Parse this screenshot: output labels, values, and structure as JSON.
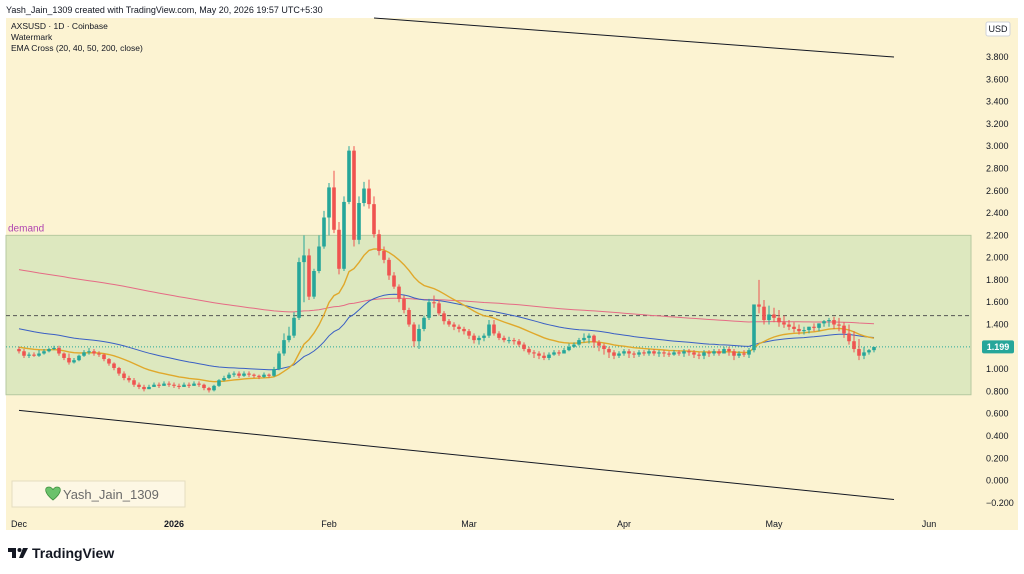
{
  "header": {
    "attribution": "Yash_Jain_1309 created with TradingView.com, May 20, 2026 19:57 UTC+5:30",
    "symbol_line": "AXSUSD · 1D · Coinbase",
    "watermark_line": "Watermark",
    "indicator_line": "EMA Cross (20, 40, 50, 200, close)"
  },
  "footer": {
    "logo_text": "TradingView"
  },
  "watermark_box": {
    "text": "Yash_Jain_1309"
  },
  "price_axis": {
    "currency": "USD",
    "last_price": "1.199"
  },
  "colors": {
    "plot_bg": "#fcf3d2",
    "demand_zone": "#d9e7bc",
    "up_candle": "#26a69a",
    "down_candle": "#ef5350",
    "ema_fast": "#e0a82b",
    "ema_slow": "#3a5fc4",
    "ema_200": "#e56b85",
    "last_price": "#26a69a",
    "demand_label": "#b044b0"
  },
  "chart_data": {
    "type": "candlestick",
    "title": "AXSUSD · 1D · Coinbase",
    "x_labels": [
      "Dec",
      "2026",
      "Feb",
      "Mar",
      "Apr",
      "May",
      "Jun"
    ],
    "y_ticks": [
      "−0.200",
      "0.000",
      "0.200",
      "0.400",
      "0.600",
      "0.800",
      "1.000",
      "1.200",
      "1.400",
      "1.600",
      "1.800",
      "2.000",
      "2.200",
      "2.400",
      "2.600",
      "2.800",
      "3.000",
      "3.200",
      "3.400",
      "3.600",
      "3.800"
    ],
    "ylim": [
      -0.3,
      4.15
    ],
    "last_price": 1.199,
    "demand_zone": {
      "label": "demand",
      "low": 0.77,
      "high": 2.2
    },
    "resistance_level": 1.48,
    "trendlines": [
      {
        "name": "upper",
        "start": [
          "2026-02-10",
          4.15
        ],
        "end": [
          "2026-05-25",
          3.8
        ]
      },
      {
        "name": "lower",
        "start": [
          "2025-12-01",
          0.63
        ],
        "end": [
          "2026-05-25",
          -0.17
        ]
      }
    ],
    "series": [
      {
        "name": "Open",
        "values": [
          1.18,
          1.16,
          1.12,
          1.13,
          1.12,
          1.14,
          1.16,
          1.18,
          1.19,
          1.14,
          1.1,
          1.06,
          1.08,
          1.12,
          1.15,
          1.16,
          1.14,
          1.13,
          1.09,
          1.05,
          1.01,
          0.96,
          0.92,
          0.9,
          0.86,
          0.84,
          0.82,
          0.84,
          0.86,
          0.85,
          0.87,
          0.86,
          0.85,
          0.84,
          0.86,
          0.85,
          0.87,
          0.86,
          0.83,
          0.81,
          0.85,
          0.9,
          0.92,
          0.95,
          0.96,
          0.94,
          0.96,
          0.95,
          0.94,
          0.93,
          0.95,
          0.94,
          1.0,
          1.14,
          1.26,
          1.3,
          1.46,
          1.96,
          2.02,
          1.65,
          1.88,
          2.1,
          2.36,
          2.63,
          2.25,
          1.9,
          2.5,
          2.96,
          2.16,
          2.49,
          2.62,
          2.48,
          2.21,
          2.06,
          1.98,
          1.84,
          1.74,
          1.63,
          1.53,
          1.4,
          1.25,
          1.36,
          1.46,
          1.6,
          1.59,
          1.5,
          1.43,
          1.4,
          1.38,
          1.36,
          1.34,
          1.3,
          1.26,
          1.28,
          1.3,
          1.4,
          1.32,
          1.28,
          1.26,
          1.26,
          1.25,
          1.22,
          1.18,
          1.15,
          1.14,
          1.12,
          1.1,
          1.13,
          1.15,
          1.14,
          1.17,
          1.2,
          1.22,
          1.26,
          1.28,
          1.3,
          1.24,
          1.21,
          1.18,
          1.15,
          1.12,
          1.14,
          1.16,
          1.14,
          1.13,
          1.15,
          1.14,
          1.16,
          1.14,
          1.15,
          1.14,
          1.13,
          1.15,
          1.14,
          1.16,
          1.15,
          1.13,
          1.12,
          1.15,
          1.14,
          1.16,
          1.14,
          1.18,
          1.16,
          1.12,
          1.14,
          1.13,
          1.17,
          1.58,
          1.56,
          1.44,
          1.49,
          1.46,
          1.42,
          1.4,
          1.38,
          1.36,
          1.34,
          1.35,
          1.38,
          1.37,
          1.41,
          1.43,
          1.44,
          1.4,
          1.39,
          1.32,
          1.25,
          1.18,
          1.12,
          1.15,
          1.17
        ]
      },
      {
        "name": "High",
        "values": [
          1.2,
          1.18,
          1.15,
          1.15,
          1.17,
          1.18,
          1.19,
          1.21,
          1.21,
          1.15,
          1.14,
          1.1,
          1.13,
          1.17,
          1.19,
          1.18,
          1.16,
          1.14,
          1.1,
          1.06,
          1.02,
          0.98,
          0.94,
          0.92,
          0.88,
          0.86,
          0.86,
          0.88,
          0.88,
          0.89,
          0.89,
          0.88,
          0.87,
          0.88,
          0.88,
          0.89,
          0.89,
          0.87,
          0.84,
          0.86,
          0.91,
          0.94,
          0.97,
          0.98,
          0.98,
          0.98,
          0.98,
          0.96,
          0.95,
          0.97,
          0.96,
          1.02,
          1.16,
          1.32,
          1.38,
          1.51,
          2.0,
          2.2,
          2.08,
          1.9,
          2.2,
          2.42,
          2.67,
          2.78,
          2.32,
          2.55,
          3.0,
          3.0,
          2.55,
          2.68,
          2.7,
          2.55,
          2.25,
          2.1,
          2.0,
          1.87,
          1.76,
          1.66,
          1.55,
          1.42,
          1.4,
          1.48,
          1.63,
          1.66,
          1.62,
          1.52,
          1.45,
          1.42,
          1.4,
          1.38,
          1.36,
          1.32,
          1.3,
          1.32,
          1.44,
          1.44,
          1.34,
          1.3,
          1.29,
          1.28,
          1.27,
          1.24,
          1.2,
          1.17,
          1.16,
          1.15,
          1.15,
          1.17,
          1.17,
          1.19,
          1.23,
          1.24,
          1.28,
          1.32,
          1.32,
          1.31,
          1.26,
          1.23,
          1.2,
          1.17,
          1.16,
          1.18,
          1.18,
          1.16,
          1.17,
          1.17,
          1.18,
          1.18,
          1.17,
          1.17,
          1.16,
          1.17,
          1.17,
          1.18,
          1.18,
          1.17,
          1.15,
          1.17,
          1.17,
          1.18,
          1.18,
          1.2,
          1.2,
          1.18,
          1.16,
          1.17,
          1.19,
          1.22,
          1.8,
          1.62,
          1.57,
          1.55,
          1.53,
          1.48,
          1.44,
          1.42,
          1.4,
          1.38,
          1.38,
          1.41,
          1.41,
          1.44,
          1.46,
          1.47,
          1.46,
          1.42,
          1.4,
          1.34,
          1.27,
          1.2,
          1.18,
          1.2,
          1.2
        ]
      },
      {
        "name": "Low",
        "values": [
          1.14,
          1.1,
          1.1,
          1.11,
          1.11,
          1.13,
          1.15,
          1.17,
          1.12,
          1.08,
          1.04,
          1.05,
          1.07,
          1.11,
          1.13,
          1.12,
          1.11,
          1.07,
          1.03,
          0.99,
          0.94,
          0.9,
          0.88,
          0.84,
          0.82,
          0.8,
          0.82,
          0.84,
          0.83,
          0.85,
          0.84,
          0.83,
          0.82,
          0.84,
          0.83,
          0.85,
          0.84,
          0.81,
          0.79,
          0.8,
          0.84,
          0.89,
          0.91,
          0.93,
          0.92,
          0.93,
          0.93,
          0.92,
          0.91,
          0.92,
          0.92,
          0.93,
          0.99,
          1.12,
          1.24,
          1.28,
          1.44,
          1.6,
          1.62,
          1.63,
          1.86,
          2.08,
          2.2,
          2.22,
          1.85,
          1.88,
          2.48,
          2.1,
          2.12,
          2.46,
          2.44,
          2.18,
          2.02,
          1.95,
          1.8,
          1.72,
          1.6,
          1.5,
          1.38,
          1.2,
          1.18,
          1.34,
          1.44,
          1.55,
          1.48,
          1.4,
          1.38,
          1.35,
          1.33,
          1.31,
          1.27,
          1.23,
          1.22,
          1.25,
          1.28,
          1.3,
          1.26,
          1.24,
          1.23,
          1.22,
          1.2,
          1.16,
          1.13,
          1.1,
          1.09,
          1.08,
          1.08,
          1.12,
          1.12,
          1.14,
          1.16,
          1.19,
          1.21,
          1.24,
          1.23,
          1.19,
          1.16,
          1.13,
          1.1,
          1.09,
          1.1,
          1.12,
          1.1,
          1.1,
          1.11,
          1.12,
          1.12,
          1.12,
          1.11,
          1.11,
          1.11,
          1.12,
          1.12,
          1.11,
          1.12,
          1.1,
          1.09,
          1.09,
          1.11,
          1.12,
          1.12,
          1.14,
          1.12,
          1.08,
          1.1,
          1.11,
          1.1,
          1.15,
          1.5,
          1.4,
          1.4,
          1.42,
          1.38,
          1.37,
          1.35,
          1.33,
          1.31,
          1.31,
          1.32,
          1.34,
          1.34,
          1.38,
          1.38,
          1.36,
          1.34,
          1.28,
          1.22,
          1.15,
          1.08,
          1.09,
          1.13,
          1.15
        ]
      },
      {
        "name": "Close",
        "values": [
          1.16,
          1.12,
          1.13,
          1.12,
          1.14,
          1.16,
          1.18,
          1.19,
          1.14,
          1.1,
          1.06,
          1.08,
          1.12,
          1.15,
          1.16,
          1.14,
          1.13,
          1.09,
          1.05,
          1.01,
          0.96,
          0.92,
          0.9,
          0.86,
          0.84,
          0.82,
          0.84,
          0.86,
          0.85,
          0.87,
          0.86,
          0.85,
          0.84,
          0.86,
          0.85,
          0.87,
          0.86,
          0.83,
          0.81,
          0.85,
          0.9,
          0.92,
          0.95,
          0.96,
          0.94,
          0.96,
          0.95,
          0.94,
          0.93,
          0.95,
          0.94,
          1.0,
          1.14,
          1.26,
          1.3,
          1.46,
          1.96,
          2.02,
          1.65,
          1.88,
          2.1,
          2.36,
          2.63,
          2.25,
          1.9,
          2.5,
          2.96,
          2.16,
          2.49,
          2.62,
          2.48,
          2.21,
          2.06,
          1.98,
          1.84,
          1.74,
          1.63,
          1.53,
          1.4,
          1.25,
          1.36,
          1.46,
          1.6,
          1.59,
          1.5,
          1.43,
          1.4,
          1.38,
          1.36,
          1.34,
          1.3,
          1.26,
          1.28,
          1.3,
          1.4,
          1.32,
          1.28,
          1.26,
          1.26,
          1.25,
          1.22,
          1.18,
          1.15,
          1.14,
          1.12,
          1.1,
          1.13,
          1.15,
          1.14,
          1.17,
          1.2,
          1.22,
          1.26,
          1.28,
          1.3,
          1.24,
          1.21,
          1.18,
          1.15,
          1.12,
          1.14,
          1.16,
          1.14,
          1.13,
          1.15,
          1.14,
          1.16,
          1.14,
          1.15,
          1.14,
          1.13,
          1.15,
          1.14,
          1.16,
          1.15,
          1.13,
          1.12,
          1.15,
          1.14,
          1.16,
          1.14,
          1.18,
          1.16,
          1.12,
          1.14,
          1.13,
          1.17,
          1.58,
          1.56,
          1.44,
          1.49,
          1.46,
          1.42,
          1.4,
          1.38,
          1.36,
          1.34,
          1.35,
          1.38,
          1.37,
          1.41,
          1.43,
          1.44,
          1.4,
          1.39,
          1.32,
          1.25,
          1.18,
          1.12,
          1.15,
          1.17,
          1.199
        ]
      }
    ]
  }
}
